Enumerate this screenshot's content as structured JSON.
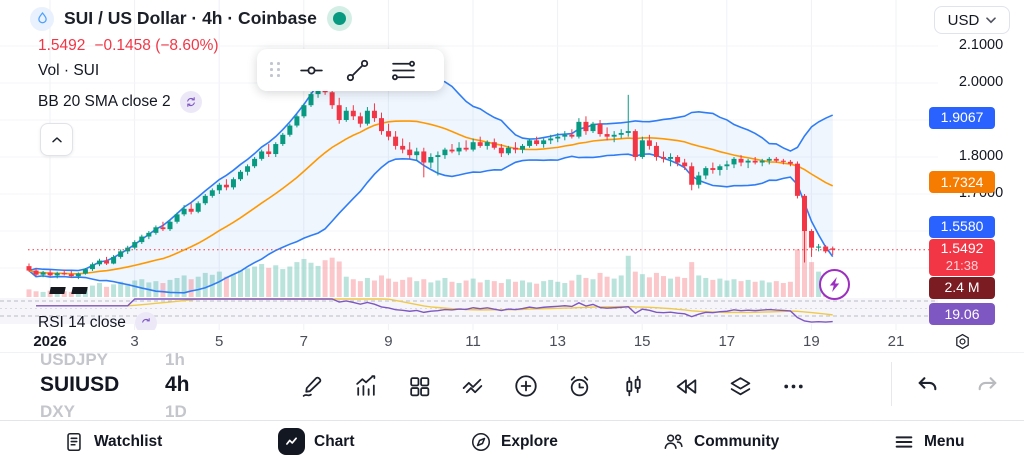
{
  "header": {
    "symbol_title": "SUI / US Dollar · 4h · Coinbase",
    "price": "1.5492",
    "change": "−0.1458 (−8.60%)",
    "volume_label": "Vol · SUI",
    "bb_label": "BB 20 SMA close 2",
    "rsi_label": "RSI 14 close",
    "market_status": "open",
    "market_status_color": "#089981"
  },
  "price_scale": {
    "currency": "USD",
    "ticks": [
      {
        "label": "2.1000",
        "value": 2.1
      },
      {
        "label": "2.0000",
        "value": 2.0
      },
      {
        "label": "1.8000",
        "value": 1.8
      },
      {
        "label": "1.7000",
        "value": 1.7
      }
    ],
    "badges": {
      "bb_upper": {
        "label": "1.9067",
        "color": "#2962FF"
      },
      "bb_basis": {
        "label": "1.7324",
        "color": "#F57C00"
      },
      "bb_lower": {
        "label": "1.5580",
        "color": "#2962FF"
      },
      "last": {
        "label": "1.5492",
        "countdown": "21:38",
        "color": "#F23645"
      },
      "volume": {
        "label": "2.4 M",
        "color": "#7A1C22"
      },
      "rsi": {
        "label": "19.06",
        "color": "#7E57C2"
      }
    }
  },
  "floating_toolbar": {
    "icons": [
      "drag-handle",
      "horizontal-line-tool",
      "trend-line-tool",
      "fib-retracement-tool"
    ]
  },
  "symbol_carousel": {
    "prev_symbol": "USDJPY",
    "prev_interval": "1h",
    "symbol": "SUIUSD",
    "interval": "4h",
    "next_symbol": "DXY",
    "next_interval": "1D"
  },
  "toolbar": {
    "icons": [
      "draw",
      "indicators",
      "layout-grid",
      "compare",
      "add",
      "alert",
      "chart-type",
      "bar-replay",
      "layers",
      "more",
      "undo",
      "redo"
    ]
  },
  "nav": {
    "items": [
      {
        "label": "Watchlist",
        "icon": "watchlist-icon"
      },
      {
        "label": "Chart",
        "icon": "chart-icon",
        "active": true
      },
      {
        "label": "Explore",
        "icon": "compass-icon"
      },
      {
        "label": "Community",
        "icon": "people-icon"
      },
      {
        "label": "Menu",
        "icon": "menu-icon"
      }
    ]
  },
  "chart_data": {
    "type": "candlestick",
    "symbol": "SUIUSD",
    "interval": "4h",
    "exchange": "Coinbase",
    "indicators": [
      "Bollinger Bands (20, SMA, close, 2)",
      "Volume",
      "RSI (14, close)"
    ],
    "price_axis_range": [
      1.45,
      2.14
    ],
    "x_ticks": [
      "2026",
      "3",
      "5",
      "7",
      "9",
      "11",
      "13",
      "15",
      "17",
      "19",
      "21"
    ],
    "last_price": 1.5492,
    "bb_upper_last": 1.9067,
    "bb_basis_last": 1.7324,
    "bb_lower_last": 1.558,
    "rsi_last": 19.06,
    "volume_last_label": "2.4 M",
    "countdown": "21:38",
    "colors": {
      "up": "#089981",
      "down": "#F23645",
      "vol_up": "rgba(8,153,129,0.28)",
      "vol_down": "rgba(242,54,69,0.28)",
      "bb_band": "#2F7DF6",
      "bb_fill": "rgba(47,125,246,0.07)",
      "bb_basis": "#FF9800",
      "rsi": "#7E57C2",
      "rsi_ma": "#EFC94C",
      "last_line": "#F23645",
      "grid": "#EFF1F5"
    },
    "candles": [
      [
        1.505,
        1.512,
        1.49,
        1.493
      ],
      [
        1.493,
        1.5,
        1.478,
        1.482
      ],
      [
        1.482,
        1.492,
        1.475,
        1.488
      ],
      [
        1.488,
        1.495,
        1.477,
        1.48
      ],
      [
        1.48,
        1.49,
        1.472,
        1.486
      ],
      [
        1.486,
        1.496,
        1.48,
        1.483
      ],
      [
        1.483,
        1.492,
        1.474,
        1.478
      ],
      [
        1.478,
        1.488,
        1.47,
        1.485
      ],
      [
        1.485,
        1.5,
        1.482,
        1.497
      ],
      [
        1.497,
        1.515,
        1.492,
        1.51
      ],
      [
        1.51,
        1.525,
        1.505,
        1.52
      ],
      [
        1.52,
        1.53,
        1.508,
        1.512
      ],
      [
        1.512,
        1.535,
        1.51,
        1.53
      ],
      [
        1.53,
        1.55,
        1.525,
        1.545
      ],
      [
        1.545,
        1.56,
        1.538,
        1.555
      ],
      [
        1.555,
        1.575,
        1.55,
        1.57
      ],
      [
        1.57,
        1.59,
        1.565,
        1.585
      ],
      [
        1.585,
        1.6,
        1.578,
        1.595
      ],
      [
        1.595,
        1.615,
        1.59,
        1.61
      ],
      [
        1.61,
        1.625,
        1.6,
        1.605
      ],
      [
        1.605,
        1.63,
        1.6,
        1.625
      ],
      [
        1.625,
        1.65,
        1.62,
        1.645
      ],
      [
        1.645,
        1.67,
        1.64,
        1.66
      ],
      [
        1.66,
        1.675,
        1.645,
        1.652
      ],
      [
        1.652,
        1.68,
        1.648,
        1.675
      ],
      [
        1.675,
        1.7,
        1.67,
        1.695
      ],
      [
        1.695,
        1.715,
        1.69,
        1.71
      ],
      [
        1.71,
        1.73,
        1.7,
        1.725
      ],
      [
        1.725,
        1.74,
        1.71,
        1.718
      ],
      [
        1.718,
        1.745,
        1.712,
        1.74
      ],
      [
        1.74,
        1.765,
        1.735,
        1.76
      ],
      [
        1.76,
        1.78,
        1.75,
        1.775
      ],
      [
        1.775,
        1.8,
        1.77,
        1.795
      ],
      [
        1.795,
        1.82,
        1.79,
        1.815
      ],
      [
        1.815,
        1.835,
        1.8,
        1.808
      ],
      [
        1.808,
        1.84,
        1.8,
        1.835
      ],
      [
        1.835,
        1.865,
        1.83,
        1.86
      ],
      [
        1.86,
        1.89,
        1.855,
        1.885
      ],
      [
        1.885,
        1.915,
        1.88,
        1.91
      ],
      [
        1.91,
        1.945,
        1.905,
        1.94
      ],
      [
        1.94,
        1.975,
        1.935,
        1.97
      ],
      [
        1.97,
        1.995,
        1.96,
        1.99
      ],
      [
        1.99,
        2.0,
        1.968,
        1.975
      ],
      [
        1.975,
        1.99,
        1.93,
        1.94
      ],
      [
        1.94,
        1.96,
        1.89,
        1.9
      ],
      [
        1.9,
        1.935,
        1.895,
        1.925
      ],
      [
        1.925,
        1.94,
        1.9,
        1.91
      ],
      [
        1.91,
        1.92,
        1.88,
        1.89
      ],
      [
        1.89,
        1.935,
        1.885,
        1.925
      ],
      [
        1.925,
        1.945,
        1.895,
        1.905
      ],
      [
        1.905,
        1.92,
        1.86,
        1.87
      ],
      [
        1.87,
        1.89,
        1.845,
        1.855
      ],
      [
        1.855,
        1.87,
        1.82,
        1.83
      ],
      [
        1.83,
        1.85,
        1.81,
        1.82
      ],
      [
        1.82,
        1.84,
        1.795,
        1.805
      ],
      [
        1.805,
        1.825,
        1.79,
        1.815
      ],
      [
        1.815,
        1.825,
        1.745,
        1.785
      ],
      [
        1.785,
        1.81,
        1.77,
        1.8
      ],
      [
        1.8,
        1.815,
        1.75,
        1.805
      ],
      [
        1.805,
        1.825,
        1.795,
        1.82
      ],
      [
        1.82,
        1.835,
        1.81,
        1.815
      ],
      [
        1.815,
        1.84,
        1.805,
        1.825
      ],
      [
        1.825,
        1.845,
        1.815,
        1.82
      ],
      [
        1.82,
        1.85,
        1.815,
        1.84
      ],
      [
        1.84,
        1.855,
        1.825,
        1.83
      ],
      [
        1.83,
        1.845,
        1.82,
        1.84
      ],
      [
        1.84,
        1.85,
        1.82,
        1.825
      ],
      [
        1.825,
        1.835,
        1.8,
        1.81
      ],
      [
        1.81,
        1.83,
        1.805,
        1.825
      ],
      [
        1.825,
        1.84,
        1.81,
        1.82
      ],
      [
        1.82,
        1.835,
        1.81,
        1.83
      ],
      [
        1.83,
        1.85,
        1.825,
        1.845
      ],
      [
        1.845,
        1.855,
        1.83,
        1.835
      ],
      [
        1.835,
        1.85,
        1.825,
        1.845
      ],
      [
        1.845,
        1.86,
        1.835,
        1.85
      ],
      [
        1.85,
        1.865,
        1.84,
        1.855
      ],
      [
        1.855,
        1.87,
        1.845,
        1.86
      ],
      [
        1.86,
        1.875,
        1.85,
        1.855
      ],
      [
        1.855,
        1.905,
        1.85,
        1.895
      ],
      [
        1.895,
        1.91,
        1.86,
        1.87
      ],
      [
        1.87,
        1.895,
        1.865,
        1.89
      ],
      [
        1.89,
        1.9,
        1.855,
        1.862
      ],
      [
        1.862,
        1.88,
        1.845,
        1.855
      ],
      [
        1.855,
        1.87,
        1.84,
        1.86
      ],
      [
        1.86,
        1.875,
        1.85,
        1.865
      ],
      [
        1.865,
        1.968,
        1.855,
        1.87
      ],
      [
        1.87,
        1.875,
        1.79,
        1.8
      ],
      [
        1.8,
        1.855,
        1.795,
        1.845
      ],
      [
        1.845,
        1.86,
        1.82,
        1.83
      ],
      [
        1.83,
        1.84,
        1.79,
        1.8
      ],
      [
        1.8,
        1.815,
        1.785,
        1.795
      ],
      [
        1.795,
        1.81,
        1.775,
        1.8
      ],
      [
        1.8,
        1.805,
        1.775,
        1.785
      ],
      [
        1.785,
        1.795,
        1.765,
        1.775
      ],
      [
        1.775,
        1.785,
        1.71,
        1.725
      ],
      [
        1.725,
        1.76,
        1.715,
        1.75
      ],
      [
        1.75,
        1.775,
        1.74,
        1.77
      ],
      [
        1.77,
        1.785,
        1.755,
        1.765
      ],
      [
        1.765,
        1.78,
        1.75,
        1.775
      ],
      [
        1.775,
        1.79,
        1.765,
        1.78
      ],
      [
        1.78,
        1.8,
        1.77,
        1.795
      ],
      [
        1.795,
        1.805,
        1.775,
        1.785
      ],
      [
        1.785,
        1.795,
        1.77,
        1.79
      ],
      [
        1.79,
        1.8,
        1.78,
        1.785
      ],
      [
        1.785,
        1.795,
        1.775,
        1.79
      ],
      [
        1.79,
        1.8,
        1.78,
        1.795
      ],
      [
        1.795,
        1.8,
        1.785,
        1.79
      ],
      [
        1.79,
        1.795,
        1.78,
        1.787
      ],
      [
        1.787,
        1.792,
        1.775,
        1.782
      ],
      [
        1.782,
        1.788,
        1.688,
        1.695
      ],
      [
        1.695,
        1.7,
        1.515,
        1.6
      ],
      [
        1.6,
        1.605,
        1.53,
        1.555
      ],
      [
        1.555,
        1.565,
        1.545,
        1.558
      ],
      [
        1.558,
        1.562,
        1.54,
        1.545
      ],
      [
        1.553,
        1.558,
        1.535,
        1.5492
      ]
    ],
    "volumes": [
      1.2,
      0.9,
      0.8,
      1.0,
      0.7,
      0.9,
      0.8,
      1.1,
      1.3,
      1.8,
      2.2,
      1.6,
      2.0,
      2.4,
      2.1,
      2.6,
      2.8,
      2.3,
      2.5,
      2.2,
      2.7,
      3.0,
      3.4,
      2.8,
      3.2,
      3.8,
      3.5,
      4.0,
      3.2,
      3.6,
      4.2,
      4.5,
      4.8,
      5.2,
      4.6,
      5.0,
      4.4,
      4.8,
      5.5,
      6.0,
      5.4,
      4.9,
      5.8,
      6.2,
      5.6,
      3.2,
      2.8,
      2.5,
      3.0,
      2.6,
      3.4,
      2.9,
      2.4,
      2.7,
      3.1,
      2.5,
      2.8,
      2.3,
      2.6,
      3.0,
      2.4,
      2.2,
      2.6,
      2.9,
      2.3,
      2.7,
      2.5,
      2.2,
      2.8,
      2.4,
      2.6,
      2.3,
      2.1,
      2.5,
      2.7,
      2.4,
      2.2,
      2.6,
      3.5,
      3.0,
      2.8,
      3.8,
      3.2,
      2.9,
      3.4,
      6.5,
      4.0,
      3.6,
      3.1,
      3.8,
      3.3,
      2.9,
      3.2,
      3.0,
      5.5,
      3.4,
      3.0,
      2.7,
      2.9,
      2.6,
      2.8,
      2.5,
      2.7,
      2.4,
      2.6,
      2.3,
      2.5,
      2.2,
      2.4,
      7.5,
      14.5,
      5.5,
      4.0,
      3.0,
      2.4
    ]
  }
}
